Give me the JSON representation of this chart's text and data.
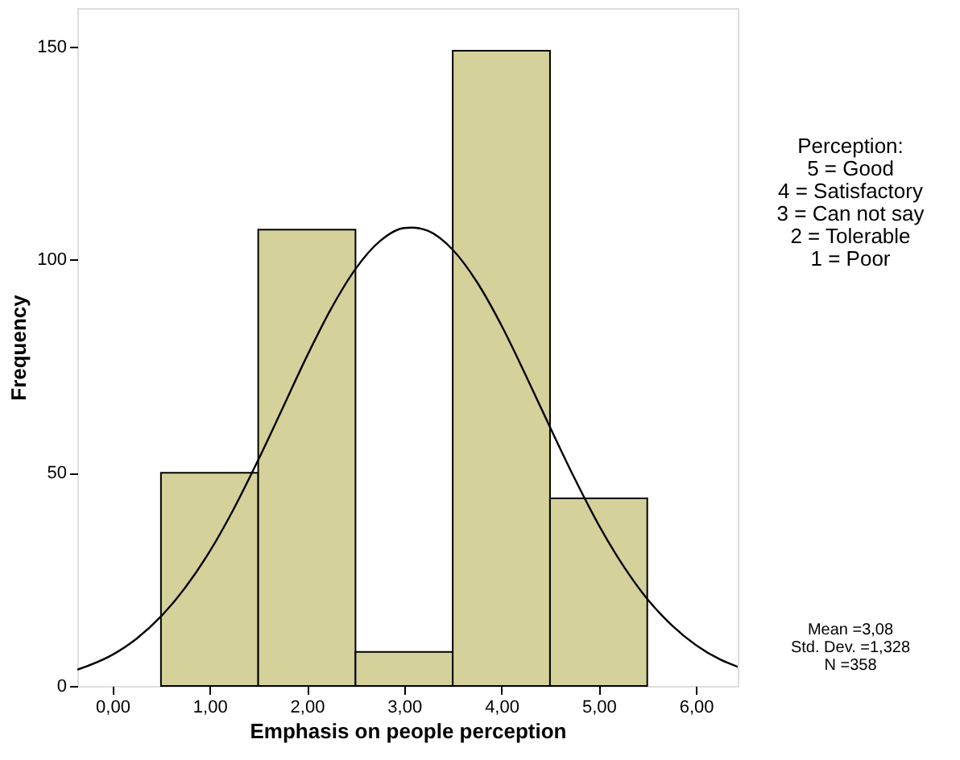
{
  "chart_data": {
    "type": "histogram",
    "xlabel": "Emphasis on people perception",
    "ylabel": "Frequency",
    "bins": [
      0.5,
      1.5,
      2.5,
      3.5,
      4.5,
      5.5
    ],
    "values": [
      50,
      107,
      8,
      149,
      44
    ],
    "color": "#d4d19a",
    "series": [
      {
        "type": "line",
        "color": "#000000",
        "x": [
          -0.36,
          0,
          0.25,
          0.5,
          0.75,
          1,
          1.25,
          1.5,
          1.75,
          2,
          2.25,
          2.5,
          2.75,
          3,
          3.08,
          3.25,
          3.5,
          3.75,
          4,
          4.25,
          4.5,
          4.75,
          5,
          5.25,
          5.5,
          5.75,
          6,
          6.25,
          6.43
        ],
        "values": [
          3.8,
          7.3,
          11.1,
          16.3,
          23.1,
          31.5,
          41.6,
          53.0,
          65.1,
          77.3,
          88.5,
          97.8,
          104.3,
          107.4,
          107.5,
          106.7,
          102.3,
          94.7,
          84.6,
          72.9,
          60.7,
          48.8,
          37.8,
          28.3,
          20.4,
          14.3,
          9.6,
          6.2,
          4.5
        ]
      }
    ],
    "xlim": [
      -0.36,
      6.43
    ],
    "ylim": [
      0,
      159
    ],
    "xticks": [
      {
        "value": 0,
        "label": "0,00"
      },
      {
        "value": 1,
        "label": "1,00"
      },
      {
        "value": 2,
        "label": "2,00"
      },
      {
        "value": 3,
        "label": "3,00"
      },
      {
        "value": 4,
        "label": "4,00"
      },
      {
        "value": 5,
        "label": "5,00"
      },
      {
        "value": 6,
        "label": "6,00"
      }
    ],
    "yticks": [
      0,
      50,
      100,
      150
    ],
    "grid": false,
    "annotations": [
      "Perception:\n5 = Good\n4 = Satisfactory\n3 = Can not say\n2 = Tolerable\n1 = Poor",
      "Mean =3,08\nStd. Dev. =1,328\nN =358"
    ]
  }
}
